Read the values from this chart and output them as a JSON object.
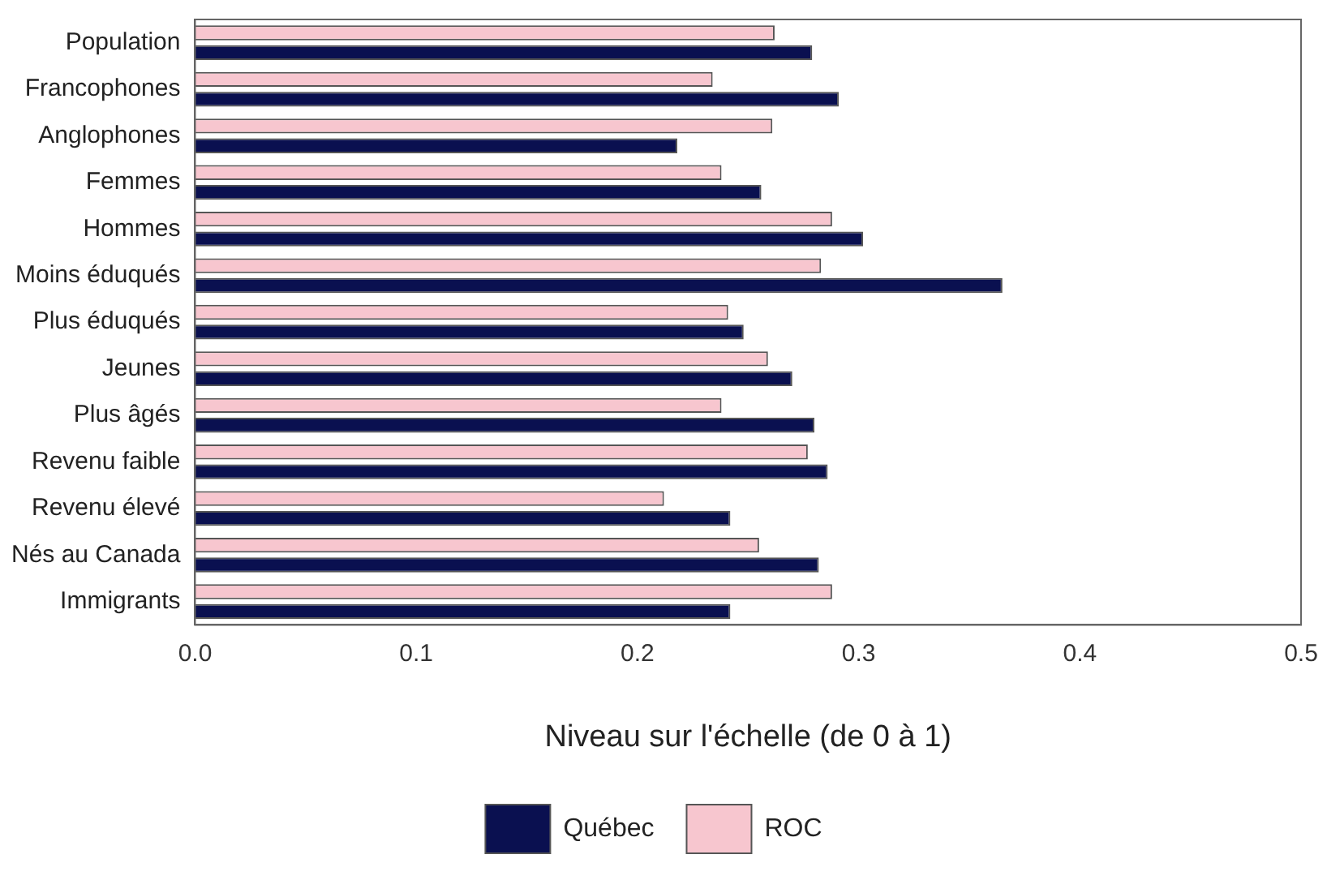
{
  "chart_data": {
    "type": "bar",
    "orientation": "horizontal",
    "categories": [
      "Population",
      "Francophones",
      "Anglophones",
      "Femmes",
      "Hommes",
      "Moins éduqués",
      "Plus éduqués",
      "Jeunes",
      "Plus âgés",
      "Revenu faible",
      "Revenu élevé",
      "Nés au Canada",
      "Immigrants"
    ],
    "series": [
      {
        "name": "Québec",
        "color": "#0a1050",
        "values": [
          0.279,
          0.291,
          0.218,
          0.256,
          0.302,
          0.365,
          0.248,
          0.27,
          0.28,
          0.286,
          0.242,
          0.282,
          0.242
        ]
      },
      {
        "name": "ROC",
        "color": "#f7c6cf",
        "values": [
          0.262,
          0.234,
          0.261,
          0.238,
          0.288,
          0.283,
          0.241,
          0.259,
          0.238,
          0.277,
          0.212,
          0.255,
          0.288
        ]
      }
    ],
    "xlabel": "Niveau sur l'échelle (de 0 à 1)",
    "xlim": [
      0,
      0.5
    ],
    "xticks": [
      {
        "value": 0,
        "label": "0.0"
      },
      {
        "value": 0.1,
        "label": "0.1"
      },
      {
        "value": 0.2,
        "label": "0.2"
      },
      {
        "value": 0.3,
        "label": "0.3"
      },
      {
        "value": 0.4,
        "label": "0.4"
      },
      {
        "value": 0.5,
        "label": "0.5"
      }
    ],
    "grid": false,
    "legend": "bottom"
  }
}
